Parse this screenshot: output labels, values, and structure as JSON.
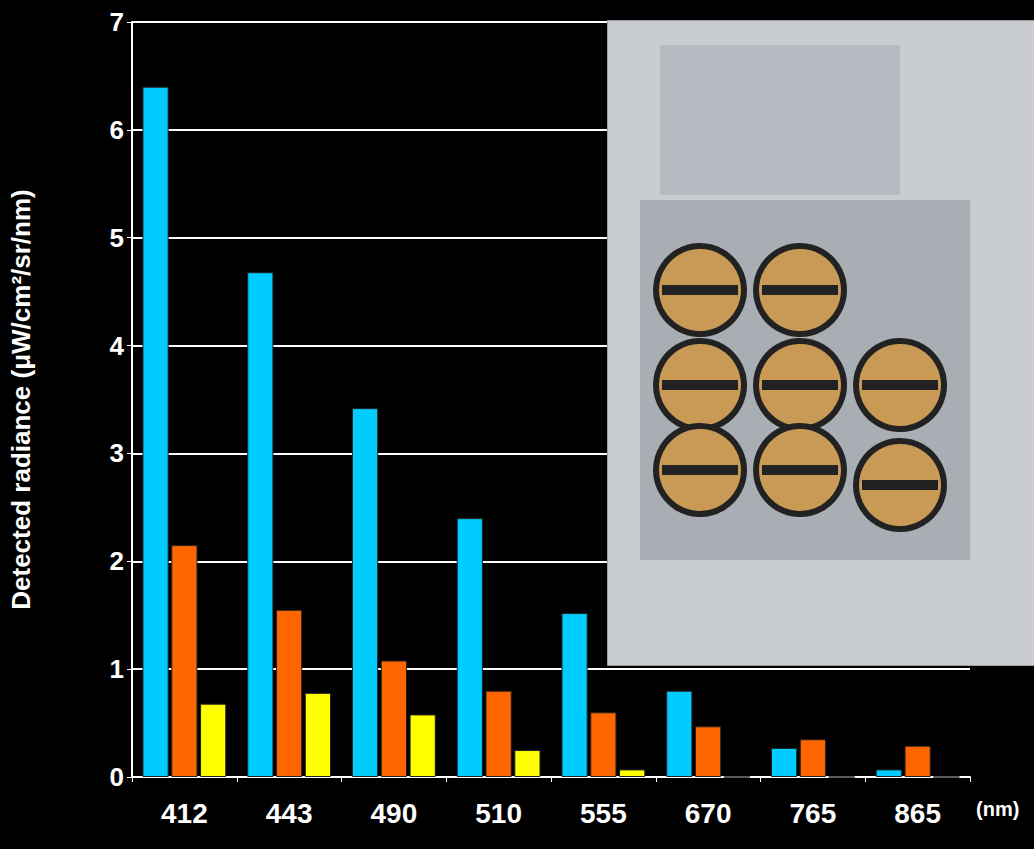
{
  "chart_data": {
    "type": "bar",
    "categories": [
      "412",
      "443",
      "490",
      "510",
      "555",
      "670",
      "765",
      "865"
    ],
    "xlabel": "(nm)",
    "ylabel": "Detected radiance (μW/cm²/sr/nm)",
    "series": [
      {
        "color": "#00ccff",
        "values": [
          6.4,
          4.68,
          3.42,
          2.4,
          1.52,
          0.8,
          0.27,
          0.07
        ]
      },
      {
        "color": "#ff6600",
        "values": [
          2.15,
          1.55,
          1.08,
          0.8,
          0.6,
          0.47,
          0.35,
          0.29
        ]
      },
      {
        "color": "#ffff00",
        "values": [
          0.68,
          0.78,
          0.58,
          0.25,
          0.07,
          0.0,
          0.0,
          0.0
        ]
      }
    ],
    "ylim": [
      0,
      7
    ],
    "yticks": [
      0,
      1,
      2,
      3,
      4,
      5,
      6,
      7
    ],
    "grid": true
  }
}
